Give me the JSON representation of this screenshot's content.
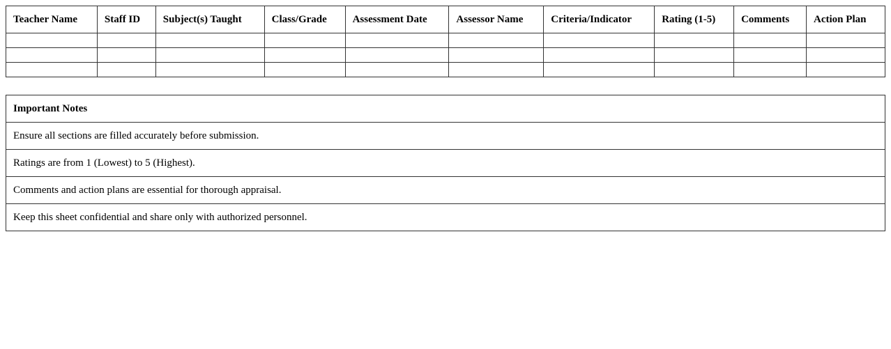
{
  "appraisal_table": {
    "headers": [
      "Teacher Name",
      "Staff ID",
      "Subject(s) Taught",
      "Class/Grade",
      "Assessment Date",
      "Assessor Name",
      "Criteria/Indicator",
      "Rating (1-5)",
      "Comments",
      "Action Plan"
    ],
    "empty_rows": 3
  },
  "notes": {
    "title": "Important Notes",
    "items": [
      "Ensure all sections are filled accurately before submission.",
      "Ratings are from 1 (Lowest) to 5 (Highest).",
      "Comments and action plans are essential for thorough appraisal.",
      "Keep this sheet confidential and share only with authorized personnel."
    ]
  }
}
